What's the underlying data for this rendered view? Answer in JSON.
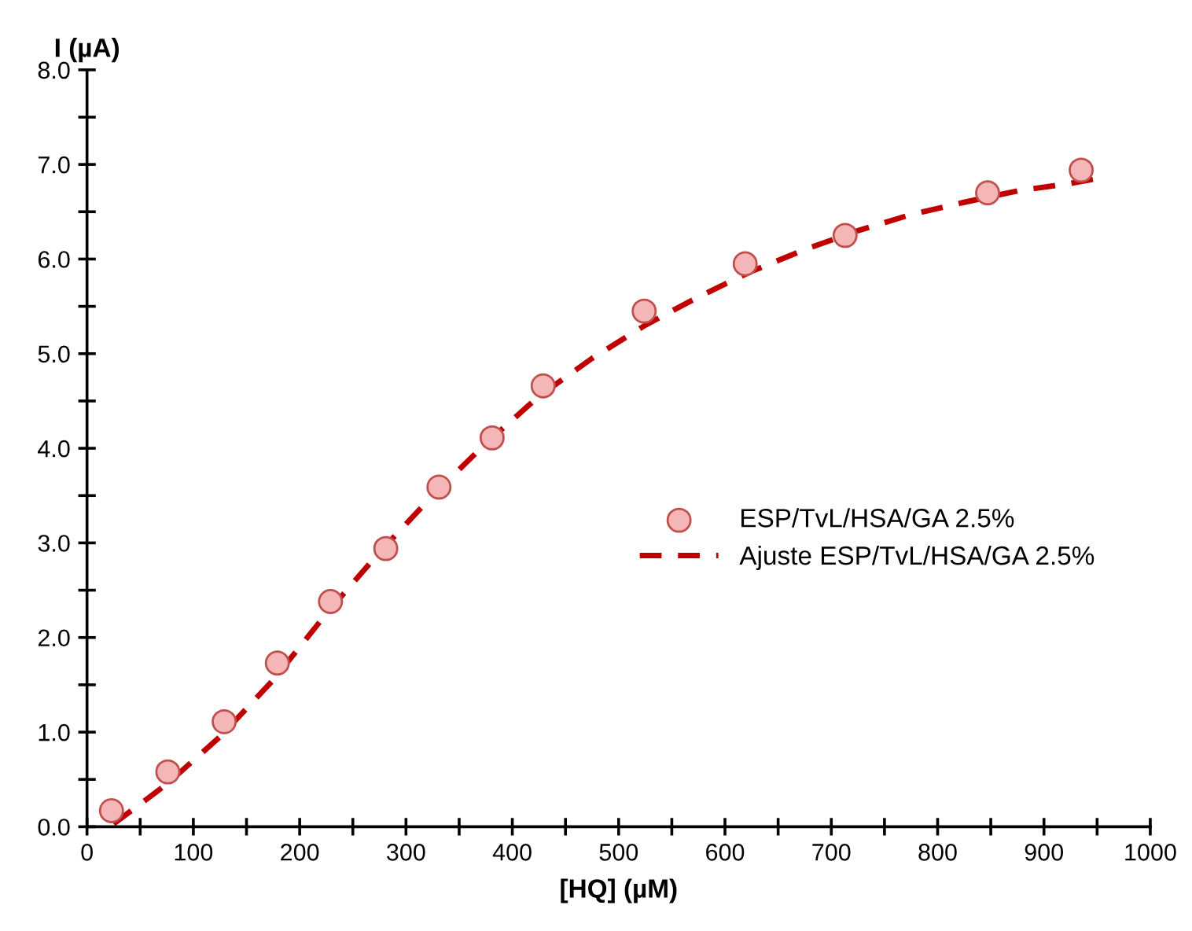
{
  "chart_data": {
    "type": "scatter",
    "xlabel": "[HQ] (µM)",
    "ylabel": "I (µA)",
    "xlim": [
      0,
      1000
    ],
    "ylim": [
      0,
      8.0
    ],
    "xticks": [
      0,
      {
        "value": 50,
        "label": null
      },
      100,
      {
        "value": 150,
        "label": null
      },
      200,
      {
        "value": 250,
        "label": null
      },
      300,
      {
        "value": 350,
        "label": null
      },
      400,
      {
        "value": 450,
        "label": null
      },
      500,
      {
        "value": 550,
        "label": null
      },
      600,
      {
        "value": 650,
        "label": null
      },
      700,
      {
        "value": 750,
        "label": null
      },
      800,
      {
        "value": 850,
        "label": null
      },
      900,
      {
        "value": 950,
        "label": null
      },
      1000
    ],
    "yticks": [
      {
        "value": 0,
        "label": "0.0"
      },
      {
        "value": 0.5,
        "label": null
      },
      {
        "value": 1,
        "label": "1.0"
      },
      {
        "value": 1.5,
        "label": null
      },
      {
        "value": 2,
        "label": "2.0"
      },
      {
        "value": 2.5,
        "label": null
      },
      {
        "value": 3,
        "label": "3.0"
      },
      {
        "value": 3.5,
        "label": null
      },
      {
        "value": 4,
        "label": "4.0"
      },
      {
        "value": 4.5,
        "label": null
      },
      {
        "value": 5,
        "label": "5.0"
      },
      {
        "value": 5.5,
        "label": null
      },
      {
        "value": 6,
        "label": "6.0"
      },
      {
        "value": 6.5,
        "label": null
      },
      {
        "value": 7,
        "label": "7.0"
      },
      {
        "value": 7.5,
        "label": null
      },
      {
        "value": 8,
        "label": "8.0"
      }
    ],
    "grid": false,
    "legend": "center right",
    "series": [
      {
        "name": "ESP/TvL/HSA/GA 2.5%",
        "marker": "circle",
        "color": "#f4b6b6",
        "x": [
          23,
          76,
          129,
          179,
          229,
          281,
          331,
          381,
          429,
          524,
          619,
          713,
          847,
          935
        ],
        "values": [
          0.17,
          0.58,
          1.11,
          1.73,
          2.38,
          2.94,
          3.59,
          4.11,
          4.66,
          5.45,
          5.95,
          6.25,
          6.7,
          6.94
        ]
      },
      {
        "name": "Ajuste ESP/TvL/HSA/GA 2.5%",
        "type": "line",
        "line_style": "dashed",
        "color": "#c00000",
        "x": [
          25,
          75,
          125,
          175,
          225,
          275,
          325,
          375,
          425,
          475,
          525,
          575,
          625,
          675,
          725,
          775,
          825,
          875,
          925,
          950
        ],
        "values": [
          0.03,
          0.45,
          0.95,
          1.55,
          2.25,
          2.9,
          3.5,
          4.05,
          4.55,
          4.95,
          5.3,
          5.6,
          5.87,
          6.1,
          6.3,
          6.47,
          6.6,
          6.72,
          6.8,
          6.85
        ]
      }
    ]
  }
}
